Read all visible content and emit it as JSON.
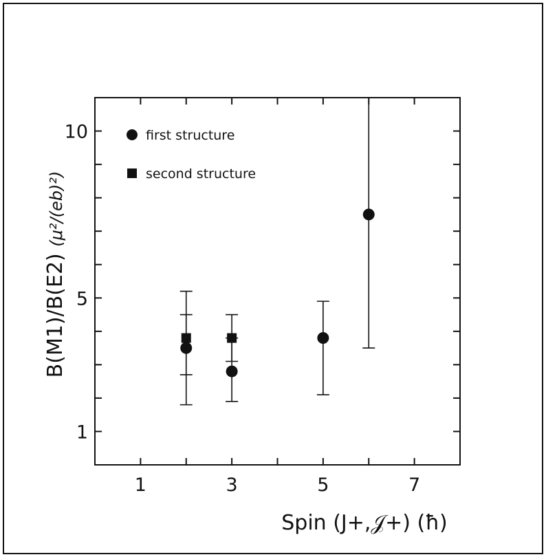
{
  "chart_data": {
    "type": "scatter",
    "xlabel": "Spin (J+,𝒥+) (ħ)",
    "ylabel_main": "B(M1)/B(E2) ",
    "ylabel_units": "(μ²/(eb)²)",
    "xlim": [
      0,
      8
    ],
    "ylim": [
      0,
      11
    ],
    "x_ticks": [
      1,
      3,
      5,
      7
    ],
    "y_ticks": [
      1,
      5,
      10
    ],
    "grid": false,
    "legend_position": "top-left",
    "series": [
      {
        "name": "first structure",
        "marker": "circle",
        "points": [
          {
            "x": 2,
            "y": 3.5,
            "y_low": 1.8,
            "y_high": 5.2
          },
          {
            "x": 3,
            "y": 2.8,
            "y_low": 1.9,
            "y_high": 3.8
          },
          {
            "x": 5,
            "y": 3.8,
            "y_low": 2.1,
            "y_high": 4.9
          },
          {
            "x": 6,
            "y": 7.5,
            "y_low": 3.5,
            "y_high": 11.0
          }
        ]
      },
      {
        "name": "second structure",
        "marker": "square",
        "points": [
          {
            "x": 2,
            "y": 3.8,
            "y_low": 2.7,
            "y_high": 4.5
          },
          {
            "x": 3,
            "y": 3.8,
            "y_low": 3.1,
            "y_high": 4.5
          }
        ]
      }
    ]
  }
}
